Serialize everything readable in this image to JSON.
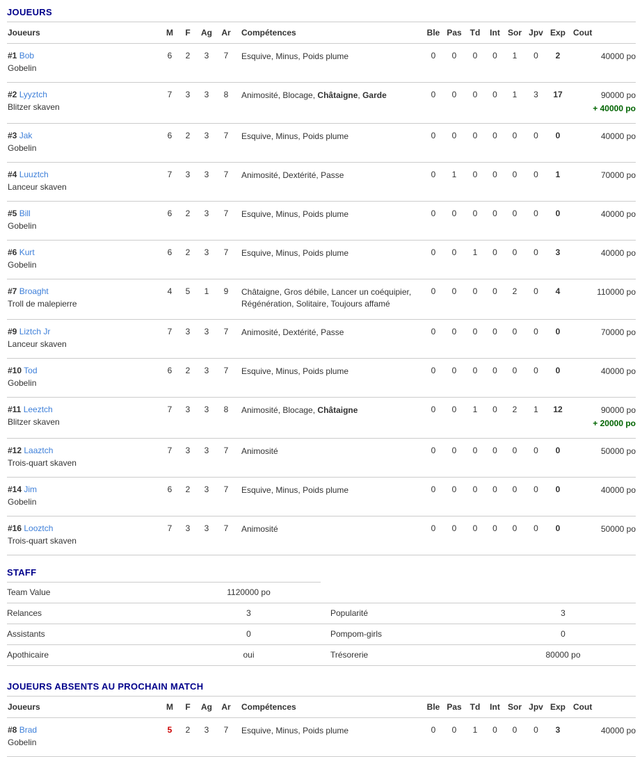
{
  "accent_colors": {
    "section_title": "#00008b",
    "player_link": "#3d7fd9",
    "bonus_green": "#006400",
    "stat_red": "#cc0000"
  },
  "sections": {
    "players": {
      "title": "JOUEURS",
      "columns": [
        "Joueurs",
        "M",
        "F",
        "Ag",
        "Ar",
        "Compétences",
        "Ble",
        "Pas",
        "Td",
        "Int",
        "Sor",
        "Jpv",
        "Exp",
        "Cout"
      ],
      "rows": [
        {
          "number": "#1",
          "name": "Bob",
          "position": "Gobelin",
          "m": "6",
          "f": "2",
          "ag": "3",
          "ar": "7",
          "skills": [
            {
              "text": "Esquive",
              "bold": false
            },
            {
              "text": "Minus",
              "bold": false
            },
            {
              "text": "Poids plume",
              "bold": false
            }
          ],
          "ble": "0",
          "pas": "0",
          "td": "0",
          "int": "0",
          "sor": "1",
          "jpv": "0",
          "exp": "2",
          "cout": "40000 po",
          "bonus": ""
        },
        {
          "number": "#2",
          "name": "Lyyztch",
          "position": "Blitzer skaven",
          "m": "7",
          "f": "3",
          "ag": "3",
          "ar": "8",
          "skills": [
            {
              "text": "Animosité",
              "bold": false
            },
            {
              "text": "Blocage",
              "bold": false
            },
            {
              "text": "Châtaigne",
              "bold": true
            },
            {
              "text": "Garde",
              "bold": true
            }
          ],
          "ble": "0",
          "pas": "0",
          "td": "0",
          "int": "0",
          "sor": "1",
          "jpv": "3",
          "exp": "17",
          "cout": "90000 po",
          "bonus": "+ 40000 po"
        },
        {
          "number": "#3",
          "name": "Jak",
          "position": "Gobelin",
          "m": "6",
          "f": "2",
          "ag": "3",
          "ar": "7",
          "skills": [
            {
              "text": "Esquive",
              "bold": false
            },
            {
              "text": "Minus",
              "bold": false
            },
            {
              "text": "Poids plume",
              "bold": false
            }
          ],
          "ble": "0",
          "pas": "0",
          "td": "0",
          "int": "0",
          "sor": "0",
          "jpv": "0",
          "exp": "0",
          "cout": "40000 po",
          "bonus": ""
        },
        {
          "number": "#4",
          "name": "Luuztch",
          "position": "Lanceur skaven",
          "m": "7",
          "f": "3",
          "ag": "3",
          "ar": "7",
          "skills": [
            {
              "text": "Animosité",
              "bold": false
            },
            {
              "text": "Dextérité",
              "bold": false
            },
            {
              "text": "Passe",
              "bold": false
            }
          ],
          "ble": "0",
          "pas": "1",
          "td": "0",
          "int": "0",
          "sor": "0",
          "jpv": "0",
          "exp": "1",
          "cout": "70000 po",
          "bonus": ""
        },
        {
          "number": "#5",
          "name": "Bill",
          "position": "Gobelin",
          "m": "6",
          "f": "2",
          "ag": "3",
          "ar": "7",
          "skills": [
            {
              "text": "Esquive",
              "bold": false
            },
            {
              "text": "Minus",
              "bold": false
            },
            {
              "text": "Poids plume",
              "bold": false
            }
          ],
          "ble": "0",
          "pas": "0",
          "td": "0",
          "int": "0",
          "sor": "0",
          "jpv": "0",
          "exp": "0",
          "cout": "40000 po",
          "bonus": ""
        },
        {
          "number": "#6",
          "name": "Kurt",
          "position": "Gobelin",
          "m": "6",
          "f": "2",
          "ag": "3",
          "ar": "7",
          "skills": [
            {
              "text": "Esquive",
              "bold": false
            },
            {
              "text": "Minus",
              "bold": false
            },
            {
              "text": "Poids plume",
              "bold": false
            }
          ],
          "ble": "0",
          "pas": "0",
          "td": "1",
          "int": "0",
          "sor": "0",
          "jpv": "0",
          "exp": "3",
          "cout": "40000 po",
          "bonus": ""
        },
        {
          "number": "#7",
          "name": "Broaght",
          "position": "Troll de malepierre",
          "m": "4",
          "f": "5",
          "ag": "1",
          "ar": "9",
          "skills": [
            {
              "text": "Châtaigne",
              "bold": false
            },
            {
              "text": "Gros débile",
              "bold": false
            },
            {
              "text": "Lancer un coéquipier",
              "bold": false
            },
            {
              "text": "Régénération",
              "bold": false
            },
            {
              "text": "Solitaire",
              "bold": false
            },
            {
              "text": "Toujours affamé",
              "bold": false
            }
          ],
          "ble": "0",
          "pas": "0",
          "td": "0",
          "int": "0",
          "sor": "2",
          "jpv": "0",
          "exp": "4",
          "cout": "110000 po",
          "bonus": ""
        },
        {
          "number": "#9",
          "name": "Liztch Jr",
          "position": "Lanceur skaven",
          "m": "7",
          "f": "3",
          "ag": "3",
          "ar": "7",
          "skills": [
            {
              "text": "Animosité",
              "bold": false
            },
            {
              "text": "Dextérité",
              "bold": false
            },
            {
              "text": "Passe",
              "bold": false
            }
          ],
          "ble": "0",
          "pas": "0",
          "td": "0",
          "int": "0",
          "sor": "0",
          "jpv": "0",
          "exp": "0",
          "cout": "70000 po",
          "bonus": ""
        },
        {
          "number": "#10",
          "name": "Tod",
          "position": "Gobelin",
          "m": "6",
          "f": "2",
          "ag": "3",
          "ar": "7",
          "skills": [
            {
              "text": "Esquive",
              "bold": false
            },
            {
              "text": "Minus",
              "bold": false
            },
            {
              "text": "Poids plume",
              "bold": false
            }
          ],
          "ble": "0",
          "pas": "0",
          "td": "0",
          "int": "0",
          "sor": "0",
          "jpv": "0",
          "exp": "0",
          "cout": "40000 po",
          "bonus": ""
        },
        {
          "number": "#11",
          "name": "Leeztch",
          "position": "Blitzer skaven",
          "m": "7",
          "f": "3",
          "ag": "3",
          "ar": "8",
          "skills": [
            {
              "text": "Animosité",
              "bold": false
            },
            {
              "text": "Blocage",
              "bold": false
            },
            {
              "text": "Châtaigne",
              "bold": true
            }
          ],
          "ble": "0",
          "pas": "0",
          "td": "1",
          "int": "0",
          "sor": "2",
          "jpv": "1",
          "exp": "12",
          "cout": "90000 po",
          "bonus": "+ 20000 po"
        },
        {
          "number": "#12",
          "name": "Laaztch",
          "position": "Trois-quart skaven",
          "m": "7",
          "f": "3",
          "ag": "3",
          "ar": "7",
          "skills": [
            {
              "text": "Animosité",
              "bold": false
            }
          ],
          "ble": "0",
          "pas": "0",
          "td": "0",
          "int": "0",
          "sor": "0",
          "jpv": "0",
          "exp": "0",
          "cout": "50000 po",
          "bonus": ""
        },
        {
          "number": "#14",
          "name": "Jim",
          "position": "Gobelin",
          "m": "6",
          "f": "2",
          "ag": "3",
          "ar": "7",
          "skills": [
            {
              "text": "Esquive",
              "bold": false
            },
            {
              "text": "Minus",
              "bold": false
            },
            {
              "text": "Poids plume",
              "bold": false
            }
          ],
          "ble": "0",
          "pas": "0",
          "td": "0",
          "int": "0",
          "sor": "0",
          "jpv": "0",
          "exp": "0",
          "cout": "40000 po",
          "bonus": ""
        },
        {
          "number": "#16",
          "name": "Looztch",
          "position": "Trois-quart skaven",
          "m": "7",
          "f": "3",
          "ag": "3",
          "ar": "7",
          "skills": [
            {
              "text": "Animosité",
              "bold": false
            }
          ],
          "ble": "0",
          "pas": "0",
          "td": "0",
          "int": "0",
          "sor": "0",
          "jpv": "0",
          "exp": "0",
          "cout": "50000 po",
          "bonus": ""
        }
      ]
    },
    "staff": {
      "title": "STAFF",
      "rows": [
        {
          "label": "Team Value",
          "value": "1120000 po",
          "label2": "",
          "value2": ""
        },
        {
          "label": "Relances",
          "value": "3",
          "label2": "Popularité",
          "value2": "3"
        },
        {
          "label": "Assistants",
          "value": "0",
          "label2": "Pompom-girls",
          "value2": "0"
        },
        {
          "label": "Apothicaire",
          "value": "oui",
          "label2": "Trésorerie",
          "value2": "80000 po"
        }
      ]
    },
    "absents": {
      "title": "JOUEURS ABSENTS AU PROCHAIN MATCH",
      "columns": [
        "Joueurs",
        "M",
        "F",
        "Ag",
        "Ar",
        "Compétences",
        "Ble",
        "Pas",
        "Td",
        "Int",
        "Sor",
        "Jpv",
        "Exp",
        "Cout"
      ],
      "rows": [
        {
          "number": "#8",
          "name": "Brad",
          "position": "Gobelin",
          "m": "5",
          "m_red": true,
          "f": "2",
          "ag": "3",
          "ar": "7",
          "skills": [
            {
              "text": "Esquive",
              "bold": false
            },
            {
              "text": "Minus",
              "bold": false
            },
            {
              "text": "Poids plume",
              "bold": false
            }
          ],
          "ble": "0",
          "pas": "0",
          "td": "1",
          "int": "0",
          "sor": "0",
          "jpv": "0",
          "exp": "3",
          "cout": "40000 po",
          "bonus": ""
        }
      ]
    }
  }
}
